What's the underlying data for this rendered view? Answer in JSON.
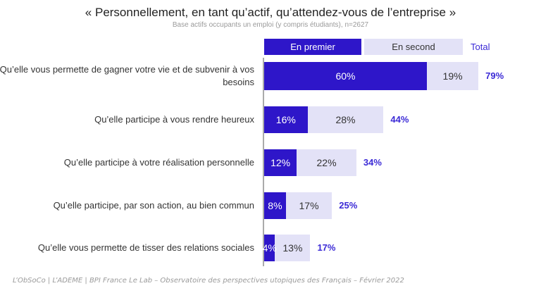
{
  "title": "« Personnellement, en tant qu’actif, qu’attendez-vous de l’entreprise »",
  "subtitle": "Base actifs occupants un emploi (y compris étudiants), n=2627",
  "footer": "L’ObSoCo | L’ADEME | BPI France Le Lab – Observatoire des perspectives utopiques des Français – Février 2022",
  "colors": {
    "first": "#2e16c9",
    "second": "#e3e2f7",
    "total": "#3b2ad6"
  },
  "chart_data": {
    "type": "bar",
    "orientation": "horizontal",
    "stacked": true,
    "categories": [
      "Qu’elle vous permette de gagner votre vie et de subvenir à vos besoins",
      "Qu’elle participe à vous rendre heureux",
      "Qu’elle participe à votre réalisation personnelle",
      "Qu’elle participe, par son action, au bien commun",
      "Qu’elle vous permette de tisser des relations sociales"
    ],
    "series": [
      {
        "name": "En premier",
        "values": [
          60,
          16,
          12,
          8,
          4
        ],
        "labels": [
          "60%",
          "16%",
          "12%",
          "8%",
          "4%"
        ]
      },
      {
        "name": "En second",
        "values": [
          19,
          28,
          22,
          17,
          13
        ],
        "labels": [
          "19%",
          "28%",
          "22%",
          "17%",
          "13%"
        ]
      }
    ],
    "totals": {
      "name": "Total",
      "values": [
        79,
        44,
        34,
        25,
        17
      ],
      "labels": [
        "79%",
        "44%",
        "34%",
        "25%",
        "17%"
      ]
    },
    "xlim": [
      0,
      100
    ],
    "grid": false,
    "legend": "top"
  }
}
